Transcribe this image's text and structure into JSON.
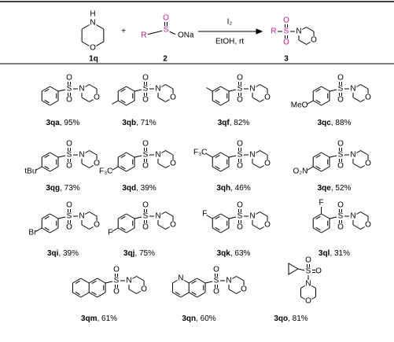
{
  "header": {
    "reactant1": "1q",
    "plus": "+",
    "reactant2": "2",
    "reagent": "I₂",
    "conditions": "EtOH, rt",
    "product": "3"
  },
  "atoms": {
    "S": "S",
    "O": "O",
    "N": "N",
    "H": "H",
    "R": "R",
    "ONa": "ONa"
  },
  "separator": ", ",
  "products": [
    {
      "compound": "3qa",
      "yield": "95%"
    },
    {
      "compound": "3qb",
      "yield": "71%"
    },
    {
      "compound": "3qf",
      "yield": "82%"
    },
    {
      "compound": "3qc",
      "yield": "88%",
      "group": "MeO"
    },
    {
      "compound": "3qg",
      "yield": "73%",
      "group": "tBu"
    },
    {
      "compound": "3qd",
      "yield": "39%",
      "group": "F₃C"
    },
    {
      "compound": "3qh",
      "yield": "46%",
      "group": "F₃C"
    },
    {
      "compound": "3qe",
      "yield": "52%",
      "group": "O₂N"
    },
    {
      "compound": "3qi",
      "yield": "39%",
      "group": "Br"
    },
    {
      "compound": "3qj",
      "yield": "75%",
      "group": "F"
    },
    {
      "compound": "3qk",
      "yield": "63%",
      "group": "F"
    },
    {
      "compound": "3ql",
      "yield": "31%",
      "group": "F"
    },
    {
      "compound": "3qm",
      "yield": "61%"
    },
    {
      "compound": "3qn",
      "yield": "60%"
    },
    {
      "compound": "3qo",
      "yield": "81%"
    }
  ]
}
